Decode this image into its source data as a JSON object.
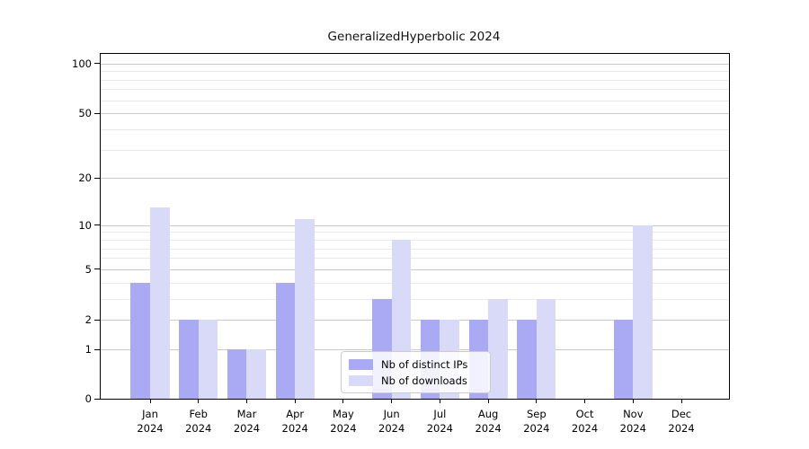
{
  "title": "GeneralizedHyperbolic 2024",
  "chart_data": {
    "type": "bar",
    "title": "GeneralizedHyperbolic 2024",
    "x_categories": [
      "Jan",
      "Feb",
      "Mar",
      "Apr",
      "May",
      "Jun",
      "Jul",
      "Aug",
      "Sep",
      "Oct",
      "Nov",
      "Dec"
    ],
    "year": "2024",
    "series": [
      {
        "name": "Nb of distinct IPs",
        "color": "#a9a9f4",
        "values": [
          4,
          2,
          1,
          4,
          0,
          3,
          2,
          2,
          2,
          0,
          2,
          0
        ]
      },
      {
        "name": "Nb of downloads",
        "color": "#d9d9f8",
        "values": [
          13,
          2,
          1,
          11,
          0,
          8,
          2,
          3,
          3,
          0,
          10,
          0
        ]
      }
    ],
    "xlabel": "",
    "ylabel": "",
    "yscale": "log10(1+y)",
    "ylim": [
      0,
      115
    ],
    "yticks": [
      0,
      1,
      2,
      5,
      10,
      20,
      50,
      100
    ],
    "yticks_minor": [
      3,
      4,
      6,
      7,
      8,
      9,
      30,
      40,
      60,
      70,
      80,
      90
    ],
    "grid": "horizontal",
    "legend_position": "lower-center",
    "colors": {
      "major_grid": "#c9c9c9",
      "minor_grid": "#e9e9e9",
      "axis": "#000000",
      "text": "#000000",
      "background": "#ffffff"
    }
  }
}
